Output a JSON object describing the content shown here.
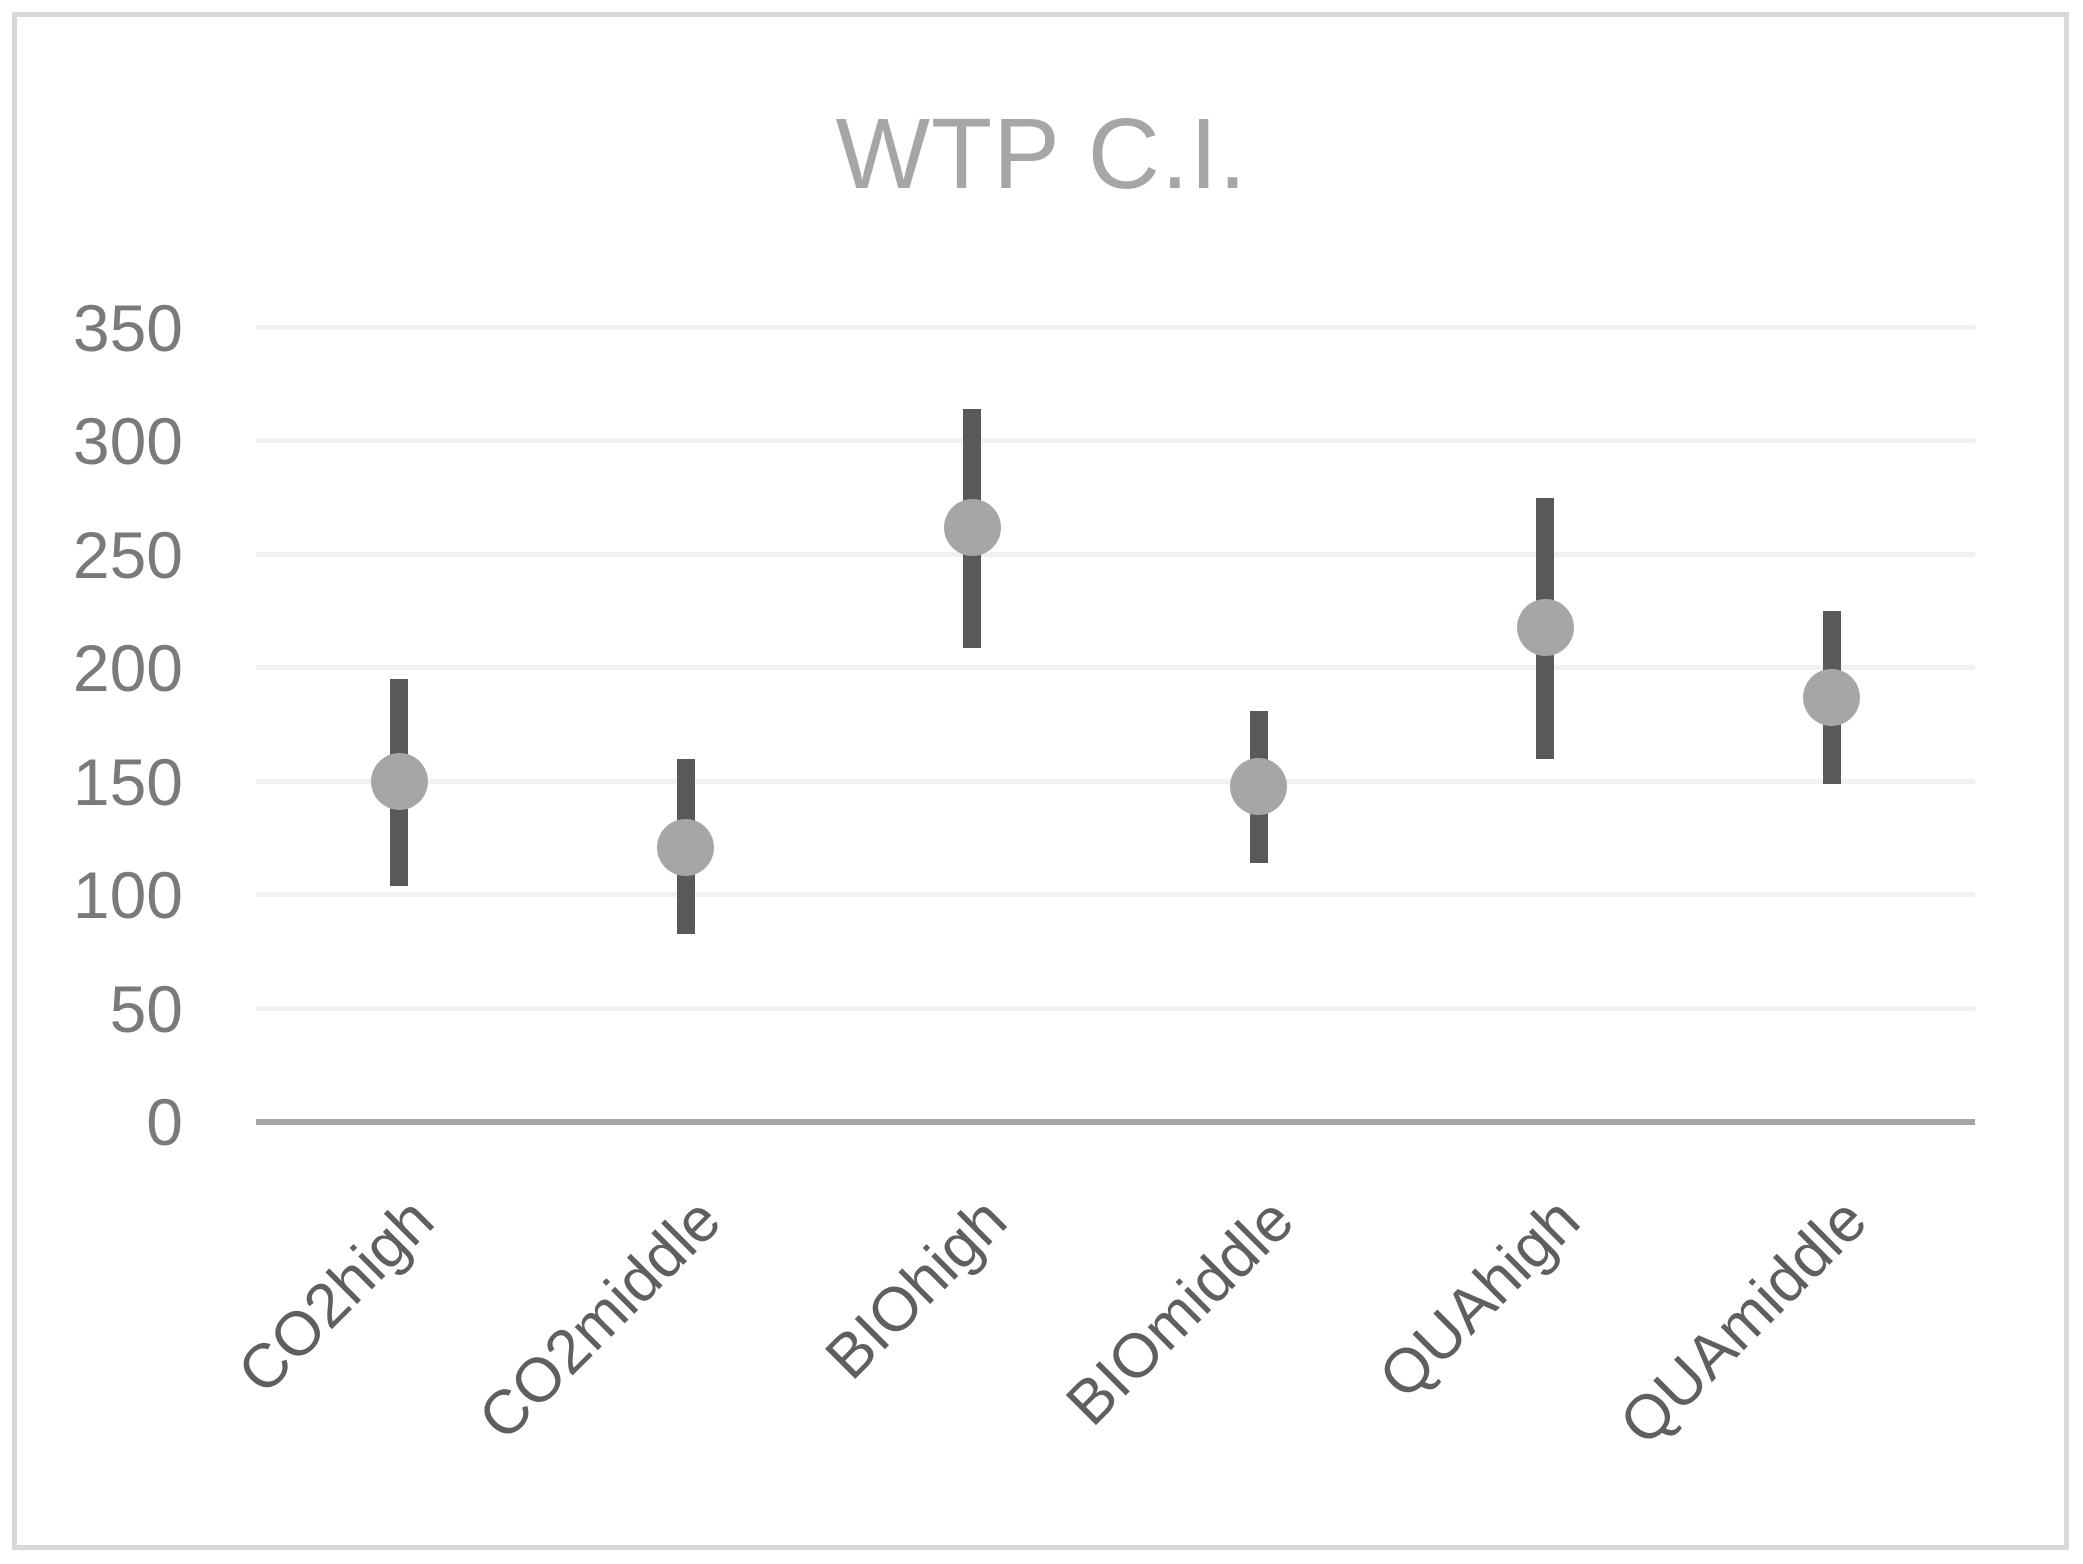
{
  "chart_data": {
    "type": "scatter",
    "title": "WTP C.I.",
    "subtitle": "",
    "categories": [
      "CO2high",
      "CO2middle",
      "BIOhigh",
      "BIOmiddle",
      "QUAhigh",
      "QUAmiddle"
    ],
    "series": [
      {
        "name": "mean",
        "values": [
          150,
          121,
          262,
          148,
          218,
          187
        ]
      },
      {
        "name": "ci_lower",
        "values": [
          104,
          83,
          209,
          114,
          160,
          149
        ]
      },
      {
        "name": "ci_upper",
        "values": [
          195,
          160,
          314,
          181,
          275,
          225
        ]
      }
    ],
    "xlabel": "",
    "ylabel": "",
    "ylim": [
      0,
      350
    ],
    "ytick_labels": [
      "0",
      "50",
      "100",
      "150",
      "200",
      "250",
      "300",
      "350"
    ],
    "grid": "horizontal",
    "legend": "none",
    "marker_shape": "circle"
  },
  "colors": {
    "title": "#a6a6a6",
    "tick_label": "#7a7a7a",
    "category_label": "#5f5f5f",
    "gridline": "#f1f1f1",
    "axis_line": "#a6a6a6",
    "error_bar": "#595959",
    "marker": "#a6a6a6",
    "frame_border": "#d9d9d9",
    "background": "#ffffff"
  }
}
